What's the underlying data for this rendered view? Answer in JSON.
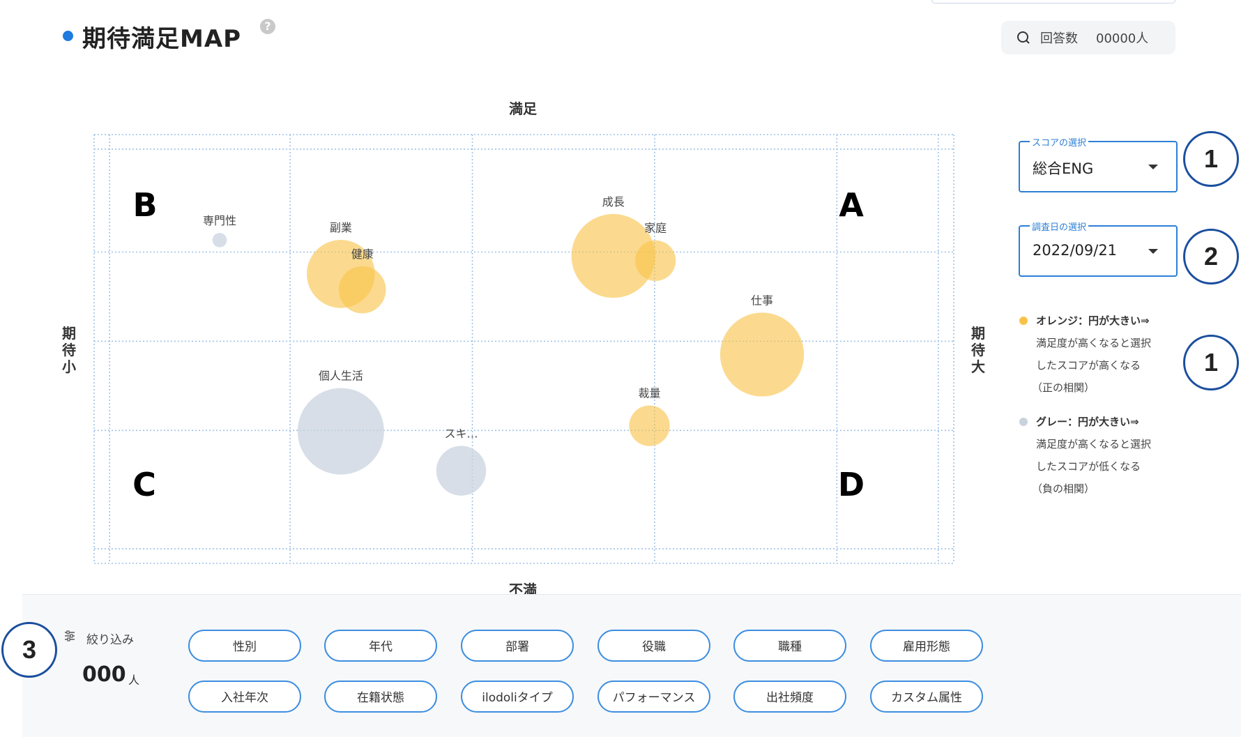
{
  "header": {
    "title": "期待満足MAP",
    "help_icon": "?",
    "responses_label": "回答数",
    "responses_value": "00000人"
  },
  "axes": {
    "top": "満足",
    "bottom": "不満",
    "left": "期待小",
    "right": "期待大"
  },
  "quadrants": {
    "top_left": "B",
    "top_right": "A",
    "bottom_left": "C",
    "bottom_right": "D"
  },
  "controls": {
    "score_select": {
      "label": "スコアの選択",
      "value": "総合ENG"
    },
    "date_select": {
      "label": "調査日の選択",
      "value": "2022/09/21"
    }
  },
  "callouts": {
    "score": "1",
    "date": "2",
    "legend": "1",
    "filter": "3"
  },
  "legend": {
    "orange": {
      "color": "#f9c34a",
      "head": "オレンジ：円が大きい⇒",
      "lines": [
        "満足度が高くなると選択",
        "したスコアが高くなる",
        "（正の相関）"
      ]
    },
    "gray": {
      "color": "#c9d3df",
      "head": "グレー：円が大きい⇒",
      "lines": [
        "満足度が高くなると選択",
        "したスコアが低くなる",
        "（負の相関）"
      ]
    }
  },
  "chart_data": {
    "type": "scatter",
    "x_axis": {
      "low": "期待小",
      "high": "期待大",
      "range": [
        0,
        1
      ]
    },
    "y_axis": {
      "low": "不満",
      "high": "満足",
      "range": [
        0,
        1
      ]
    },
    "quadrant_labels": {
      "top_right": "A",
      "top_left": "B",
      "bottom_left": "C",
      "bottom_right": "D"
    },
    "grid": true,
    "points": [
      {
        "label": "専門性",
        "x": 0.146,
        "y": 0.754,
        "size": 0.11,
        "color": "gray"
      },
      {
        "label": "副業",
        "x": 0.287,
        "y": 0.675,
        "size": 0.52,
        "color": "orange"
      },
      {
        "label": "健康",
        "x": 0.312,
        "y": 0.638,
        "size": 0.36,
        "color": "orange"
      },
      {
        "label": "成長",
        "x": 0.604,
        "y": 0.717,
        "size": 0.64,
        "color": "orange"
      },
      {
        "label": "家庭",
        "x": 0.653,
        "y": 0.706,
        "size": 0.31,
        "color": "orange"
      },
      {
        "label": "仕事",
        "x": 0.777,
        "y": 0.487,
        "size": 0.64,
        "color": "orange"
      },
      {
        "label": "個人生活",
        "x": 0.287,
        "y": 0.308,
        "size": 0.66,
        "color": "gray"
      },
      {
        "label": "スキ…",
        "x": 0.427,
        "y": 0.216,
        "size": 0.38,
        "color": "gray"
      },
      {
        "label": "裁量",
        "x": 0.646,
        "y": 0.321,
        "size": 0.31,
        "color": "orange"
      }
    ]
  },
  "filter": {
    "label": "絞り込み",
    "count": "000",
    "count_unit": "人",
    "chips_row1": [
      "性別",
      "年代",
      "部署",
      "役職",
      "職種",
      "雇用形態"
    ],
    "chips_row2": [
      "入社年次",
      "在籍状態",
      "ilodoliタイプ",
      "パフォーマンス",
      "出社頻度",
      "カスタム属性"
    ]
  }
}
